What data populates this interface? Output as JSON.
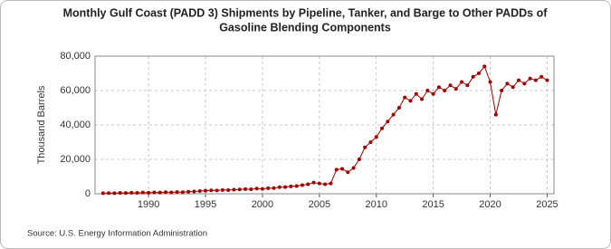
{
  "chart_data": {
    "type": "line",
    "title": [
      "Monthly Gulf Coast (PADD 3) Shipments by Pipeline, Tanker, and Barge to Other PADDs of",
      "Gasoline Blending Components"
    ],
    "y_label": "Thousand Barrels",
    "source": "Source: U.S. Energy Information Administration",
    "color": "#a00000",
    "grid": true,
    "xlim": [
      1985.3,
      2025.6
    ],
    "xticks": [
      1990,
      1995,
      2000,
      2005,
      2010,
      2015,
      2020,
      2025
    ],
    "ylim": [
      0,
      80000
    ],
    "yticks": [
      0,
      {
        "value": 20000,
        "label": "20,000"
      },
      {
        "value": 40000,
        "label": "40,000"
      },
      {
        "value": 60000,
        "label": "60,000"
      },
      {
        "value": 80000,
        "label": "80,000"
      }
    ],
    "x": [
      1986.0,
      1986.5,
      1987.0,
      1987.5,
      1988.0,
      1988.5,
      1989.0,
      1989.5,
      1990.0,
      1990.5,
      1991.0,
      1991.5,
      1992.0,
      1992.5,
      1993.0,
      1993.5,
      1994.0,
      1994.5,
      1995.0,
      1995.5,
      1996.0,
      1996.5,
      1997.0,
      1997.5,
      1998.0,
      1998.5,
      1999.0,
      1999.5,
      2000.0,
      2000.5,
      2001.0,
      2001.5,
      2002.0,
      2002.5,
      2003.0,
      2003.5,
      2004.0,
      2004.5,
      2005.0,
      2005.5,
      2006.0,
      2006.5,
      2007.0,
      2007.5,
      2008.0,
      2008.5,
      2009.0,
      2009.5,
      2010.0,
      2010.5,
      2011.0,
      2011.5,
      2012.0,
      2012.5,
      2013.0,
      2013.5,
      2014.0,
      2014.5,
      2015.0,
      2015.5,
      2016.0,
      2016.5,
      2017.0,
      2017.5,
      2018.0,
      2018.5,
      2019.0,
      2019.5,
      2020.0,
      2020.5,
      2021.0,
      2021.5,
      2022.0,
      2022.5,
      2023.0,
      2023.5,
      2024.0,
      2024.5,
      2025.0
    ],
    "values": [
      300,
      400,
      350,
      500,
      450,
      600,
      500,
      700,
      600,
      800,
      700,
      900,
      800,
      1000,
      900,
      1200,
      1300,
      1600,
      1800,
      2000,
      1900,
      2200,
      2100,
      2400,
      2500,
      2700,
      2600,
      3000,
      2800,
      3200,
      3300,
      3800,
      3900,
      4300,
      4500,
      5000,
      5500,
      6500,
      6000,
      5500,
      6000,
      14000,
      14500,
      12500,
      15000,
      20000,
      27000,
      30000,
      33000,
      38000,
      42000,
      46000,
      50000,
      56000,
      54000,
      58000,
      55000,
      60000,
      58000,
      62000,
      60000,
      63000,
      61000,
      65000,
      63000,
      68000,
      70000,
      74000,
      65000,
      46000,
      60000,
      64000,
      62000,
      66000,
      64000,
      67000,
      66000,
      68000,
      66000
    ]
  }
}
